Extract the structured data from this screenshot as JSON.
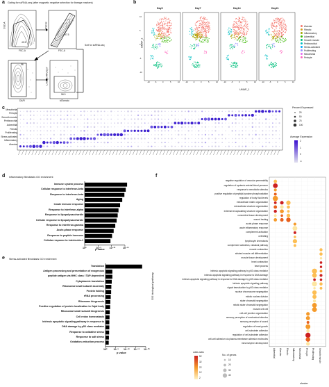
{
  "panel_a": {
    "letter": "a",
    "title": "Gating for scRNA-seq (after magnetic negative selection for lineage markers)",
    "gates": [
      "40.5",
      "97.5",
      "96",
      "98.9"
    ],
    "axes": [
      "SSC-A",
      "FSC-A",
      "FSC-H",
      "FSC-A",
      "DAPI",
      "Lineage-APC/Cy7",
      "tdTomato"
    ],
    "sort_note": "Sort for scRNA-seq"
  },
  "panel_b": {
    "letter": "b",
    "timepoints": [
      "Day0",
      "Day7",
      "Day14",
      "Day21"
    ],
    "xlabel": "UMAP_1",
    "ylabel": "UMAP_2",
    "ticks": [
      "-10",
      "-5",
      "0",
      "5",
      "10"
    ],
    "legend": [
      {
        "name": "Alveolar",
        "color": "#f4766d"
      },
      {
        "name": "Fibrotic",
        "color": "#d29e20"
      },
      {
        "name": "Inflammatory",
        "color": "#a3a500"
      },
      {
        "name": "Adventitial",
        "color": "#39b600"
      },
      {
        "name": "Smooth muscle",
        "color": "#00bf7d"
      },
      {
        "name": "Peribronchial",
        "color": "#00bfc4"
      },
      {
        "name": "Stress-activated",
        "color": "#00a9ff"
      },
      {
        "name": "Proliferating",
        "color": "#9590ff"
      },
      {
        "name": "Mesothelial",
        "color": "#e76bf3"
      },
      {
        "name": "Pericyte",
        "color": "#ff62bc"
      }
    ]
  },
  "panel_c": {
    "letter": "c",
    "rows": [
      "Mesothelial",
      "Pericyte",
      "Smooth muscle",
      "Peribronchial",
      "Adventitial",
      "Fibrotic",
      "Proliferating",
      "Stress-activated",
      "Inflammatory",
      "Alveolar"
    ],
    "legend_title": "Percent Expressed",
    "pct_values": [
      "25",
      "50",
      "75",
      "100"
    ],
    "avg_title": "Average Expression",
    "avg_ticks": [
      "2",
      "1",
      "0",
      "-1"
    ]
  },
  "panel_d": {
    "letter": "d",
    "title": "Inflammatory fibroblasts GO enrichment",
    "xlabel": "p value",
    "ticks": [
      "10⁰",
      "10⁻⁵",
      "10⁻¹⁰",
      "10⁻¹⁵"
    ],
    "terms": [
      "Immune system process",
      "Cellular response to interferon-beta",
      "Response to interferon-beta",
      "Aging",
      "Innate immune response",
      "Response to interferon-alpha",
      "Response to lipopolysaccharide",
      "Cellular response to lipopolysaccharide",
      "Response to interferon-gamma",
      "Acute-phase response",
      "Response to peptide hormone",
      "Cellular response to interleukin-1"
    ],
    "values": [
      15.8,
      15.3,
      14.8,
      14.0,
      13.2,
      12.6,
      12.3,
      11.9,
      11.4,
      10.8,
      10.2,
      9.6
    ],
    "xmax": 15
  },
  "panel_e": {
    "letter": "e",
    "title": "Stress-activated fibroblasts GO enrichment",
    "xlabel": "p value",
    "ticks": [
      "10⁰",
      "10⁻⁵",
      "10⁻¹⁰",
      "10⁻¹⁵",
      "10⁻²⁰"
    ],
    "terms": [
      "Translation",
      "Antigen processing and presentation of exogenous",
      "peptide antigen via MHC class I TAP-dependent",
      "Cytoplasmic translation",
      "Ribosomal small subunit assembly",
      "Protein folding",
      "rRNA processing",
      "Ribosome biogenesis",
      "Positive regulation of protein localization to Cajal body",
      "Ribosomal small subunit biogenesis",
      "Cell redox homeostasis",
      "Intrinsic apoptotic signaling pathway in response to",
      "DNA damage by p53 class mediator",
      "Response to oxidative stress",
      "Response to salt stress",
      "Oxidation-reduction process"
    ],
    "values": [
      18.2,
      3.4,
      3.4,
      3.1,
      2.9,
      2.8,
      2.6,
      2.4,
      2.3,
      2.1,
      2.0,
      1.9,
      1.9,
      1.8,
      1.7,
      1.6
    ],
    "xmax": 20
  },
  "panel_f": {
    "letter": "f",
    "ylabel": "GO biological pathway",
    "xlabel": "cluster",
    "clusters": [
      "Adventitial",
      "Alveolar",
      "Fibrotic",
      "Inflammatory",
      "Mesothelial",
      "Pericyte",
      "Proliferating",
      "Smooth muscle"
    ],
    "pathways": [
      "negative regulation of vascular permeability",
      "regulation of systemic arterial blood pressure",
      "response to xenobiotic stimulus",
      "positive regulation of peptidyl-tyrosine phosphorylation",
      "regulation of body fluid levels",
      "extracellular matrix organization",
      "extracellular structure organization",
      "external encapsulating structure organization",
      "connective tissue development",
      "wound healing",
      "acute-phase response",
      "acute inflammatory response",
      "complement activation",
      "cell killing",
      "lymphocyte chemotaxis",
      "complement activation, classical pathway",
      "muscle contraction",
      "striated muscle cell differentiation",
      "muscle tissue development",
      "heart contraction",
      "heart process",
      "intrinsic apoptotic signaling pathway by p53 class mediator",
      "intrinsic apoptotic signaling pathway in response to DNA damage",
      "intrinsic apoptotic signaling pathway in response to DNA damage by p53 class mediator",
      "intrinsic apoptotic signaling pathway",
      "signal transduction by p53 class mediator",
      "nuclear chromosome segregation",
      "mitotic nuclear division",
      "sister chromatid segregation",
      "mitotic sister chromatid segregation",
      "muscle cell cell",
      "cell-cell junction organization",
      "sensory perception of mechanical stimulus",
      "sensory perception of sound",
      "regulation of heart growth",
      "cell-substrate adhesion",
      "regulation of cell-substrate adhesion",
      "cell-cell adhesion via plasma-membrane adhesion molecules",
      "mesenchyme development"
    ],
    "odds_title": "odds.ratio",
    "odds_ticks": [
      "52",
      "32",
      "22",
      "12",
      "2"
    ],
    "genes_title": "No. of genes",
    "genes_ticks": [
      "10",
      "20",
      "30",
      "40"
    ]
  }
}
